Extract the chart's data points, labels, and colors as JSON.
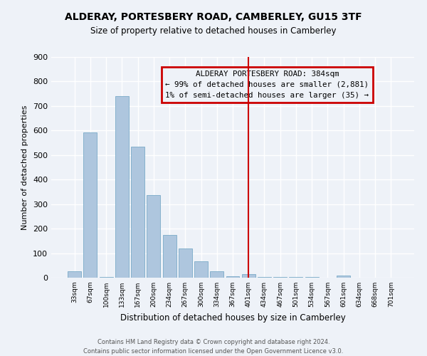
{
  "title": "ALDERAY, PORTESBERY ROAD, CAMBERLEY, GU15 3TF",
  "subtitle": "Size of property relative to detached houses in Camberley",
  "xlabel": "Distribution of detached houses by size in Camberley",
  "ylabel": "Number of detached properties",
  "bar_color": "#aec6de",
  "bar_edge_color": "#7aaac8",
  "background_color": "#eef2f8",
  "grid_color": "#ffffff",
  "categories": [
    "33sqm",
    "67sqm",
    "100sqm",
    "133sqm",
    "167sqm",
    "200sqm",
    "234sqm",
    "267sqm",
    "300sqm",
    "334sqm",
    "367sqm",
    "401sqm",
    "434sqm",
    "467sqm",
    "501sqm",
    "534sqm",
    "567sqm",
    "601sqm",
    "634sqm",
    "668sqm",
    "701sqm"
  ],
  "values": [
    27,
    593,
    3,
    740,
    535,
    338,
    175,
    120,
    67,
    25,
    5,
    15,
    3,
    3,
    2,
    2,
    0,
    8,
    0,
    0,
    0
  ],
  "ylim": [
    0,
    900
  ],
  "yticks": [
    0,
    100,
    200,
    300,
    400,
    500,
    600,
    700,
    800,
    900
  ],
  "vline_x": 11.0,
  "vline_color": "#cc0000",
  "annotation_title": "ALDERAY PORTESBERY ROAD: 384sqm",
  "annotation_line1": "← 99% of detached houses are smaller (2,881)",
  "annotation_line2": "1% of semi-detached houses are larger (35) →",
  "annotation_box_color": "#cc0000",
  "footer_line1": "Contains HM Land Registry data © Crown copyright and database right 2024.",
  "footer_line2": "Contains public sector information licensed under the Open Government Licence v3.0."
}
